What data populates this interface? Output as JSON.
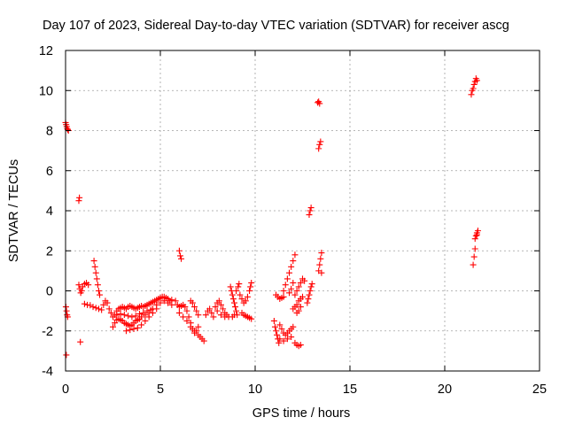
{
  "chart_data": {
    "type": "scatter",
    "title": "Day 107 of 2023, Sidereal Day-to-day VTEC variation (SDTVAR) for receiver ascg",
    "xlabel": "GPS time / hours",
    "ylabel": "SDTVAR / TECUs",
    "xlim": [
      0,
      25
    ],
    "ylim": [
      -4,
      12
    ],
    "xticks": [
      0,
      5,
      10,
      15,
      20,
      25
    ],
    "yticks": [
      -4,
      -2,
      0,
      2,
      4,
      6,
      8,
      10,
      12
    ],
    "grid": true,
    "marker": "+",
    "series_color": "#ff0000",
    "points": [
      [
        0.0,
        8.4
      ],
      [
        0.03,
        8.3
      ],
      [
        0.06,
        8.2
      ],
      [
        0.09,
        8.1
      ],
      [
        0.12,
        8.05
      ],
      [
        0.15,
        8.0
      ],
      [
        0.02,
        -0.8
      ],
      [
        0.05,
        -1.0
      ],
      [
        0.08,
        -1.2
      ],
      [
        0.11,
        -1.3
      ],
      [
        0.04,
        -3.2
      ],
      [
        0.7,
        4.5
      ],
      [
        0.73,
        4.65
      ],
      [
        0.78,
        -2.55
      ],
      [
        0.7,
        0.3
      ],
      [
        0.75,
        0.1
      ],
      [
        0.8,
        -0.1
      ],
      [
        0.85,
        0.0
      ],
      [
        0.9,
        0.2
      ],
      [
        1.0,
        0.35
      ],
      [
        1.1,
        0.4
      ],
      [
        1.2,
        0.3
      ],
      [
        1.0,
        -0.65
      ],
      [
        1.15,
        -0.7
      ],
      [
        1.3,
        -0.72
      ],
      [
        1.45,
        -0.8
      ],
      [
        1.6,
        -0.85
      ],
      [
        1.75,
        -0.9
      ],
      [
        1.9,
        -0.95
      ],
      [
        1.5,
        1.5
      ],
      [
        1.55,
        1.2
      ],
      [
        1.6,
        0.9
      ],
      [
        1.65,
        0.6
      ],
      [
        1.7,
        0.3
      ],
      [
        1.75,
        0.0
      ],
      [
        1.8,
        -0.2
      ],
      [
        2.0,
        -0.7
      ],
      [
        2.1,
        -0.5
      ],
      [
        2.2,
        -0.6
      ],
      [
        2.3,
        -0.9
      ],
      [
        2.4,
        -1.1
      ],
      [
        2.5,
        -1.3
      ],
      [
        2.6,
        -1.2
      ],
      [
        2.7,
        -1.0
      ],
      [
        2.8,
        -0.9
      ],
      [
        2.9,
        -0.85
      ],
      [
        3.0,
        -0.8
      ],
      [
        3.1,
        -0.85
      ],
      [
        3.2,
        -0.9
      ],
      [
        3.3,
        -0.8
      ],
      [
        3.4,
        -0.75
      ],
      [
        3.5,
        -0.8
      ],
      [
        3.6,
        -0.85
      ],
      [
        3.7,
        -0.9
      ],
      [
        3.8,
        -0.85
      ],
      [
        3.9,
        -0.8
      ],
      [
        4.0,
        -0.75
      ],
      [
        2.5,
        -1.8
      ],
      [
        2.6,
        -1.6
      ],
      [
        2.7,
        -1.45
      ],
      [
        2.8,
        -1.4
      ],
      [
        2.9,
        -1.45
      ],
      [
        3.0,
        -1.5
      ],
      [
        3.1,
        -1.6
      ],
      [
        3.2,
        -1.65
      ],
      [
        3.3,
        -1.7
      ],
      [
        3.4,
        -1.75
      ],
      [
        3.5,
        -1.7
      ],
      [
        3.6,
        -1.6
      ],
      [
        3.7,
        -1.5
      ],
      [
        3.8,
        -1.45
      ],
      [
        3.9,
        -1.4
      ],
      [
        4.0,
        -1.3
      ],
      [
        2.7,
        -1.2
      ],
      [
        2.9,
        -1.15
      ],
      [
        3.1,
        -1.2
      ],
      [
        3.3,
        -1.25
      ],
      [
        3.5,
        -1.3
      ],
      [
        3.7,
        -1.25
      ],
      [
        3.9,
        -1.15
      ],
      [
        4.1,
        -1.1
      ],
      [
        4.3,
        -1.0
      ],
      [
        4.5,
        -0.95
      ],
      [
        3.2,
        -2.0
      ],
      [
        3.4,
        -1.95
      ],
      [
        3.6,
        -1.9
      ],
      [
        3.8,
        -1.85
      ],
      [
        4.0,
        -1.7
      ],
      [
        4.2,
        -1.5
      ],
      [
        4.4,
        -1.3
      ],
      [
        4.6,
        -1.1
      ],
      [
        4.8,
        -0.9
      ],
      [
        4.1,
        -0.8
      ],
      [
        4.2,
        -0.75
      ],
      [
        4.3,
        -0.7
      ],
      [
        4.4,
        -0.65
      ],
      [
        4.5,
        -0.6
      ],
      [
        4.6,
        -0.55
      ],
      [
        4.7,
        -0.5
      ],
      [
        4.8,
        -0.45
      ],
      [
        4.9,
        -0.4
      ],
      [
        5.0,
        -0.35
      ],
      [
        5.1,
        -0.3
      ],
      [
        5.2,
        -0.3
      ],
      [
        5.3,
        -0.35
      ],
      [
        5.4,
        -0.4
      ],
      [
        5.5,
        -0.5
      ],
      [
        5.6,
        -0.45
      ],
      [
        4.2,
        -1.2
      ],
      [
        4.4,
        -1.1
      ],
      [
        4.6,
        -0.9
      ],
      [
        4.8,
        -0.7
      ],
      [
        5.0,
        -0.6
      ],
      [
        5.2,
        -0.5
      ],
      [
        5.4,
        -0.6
      ],
      [
        5.6,
        -0.7
      ],
      [
        6.0,
        2.0
      ],
      [
        6.05,
        1.75
      ],
      [
        6.1,
        1.6
      ],
      [
        5.8,
        -0.5
      ],
      [
        5.9,
        -0.7
      ],
      [
        6.0,
        -0.8
      ],
      [
        6.1,
        -0.75
      ],
      [
        6.2,
        -0.7
      ],
      [
        6.3,
        -0.8
      ],
      [
        6.4,
        -1.0
      ],
      [
        6.5,
        -1.3
      ],
      [
        6.6,
        -1.6
      ],
      [
        6.7,
        -1.9
      ],
      [
        6.8,
        -2.1
      ],
      [
        6.9,
        -2.0
      ],
      [
        7.0,
        -1.8
      ],
      [
        6.0,
        -1.1
      ],
      [
        6.2,
        -1.3
      ],
      [
        6.4,
        -1.5
      ],
      [
        6.6,
        -1.8
      ],
      [
        6.8,
        -2.0
      ],
      [
        7.0,
        -2.2
      ],
      [
        7.1,
        -2.3
      ],
      [
        7.2,
        -2.4
      ],
      [
        7.3,
        -2.5
      ],
      [
        6.6,
        -0.5
      ],
      [
        6.7,
        -0.6
      ],
      [
        6.8,
        -0.8
      ],
      [
        6.9,
        -1.0
      ],
      [
        7.0,
        -1.2
      ],
      [
        7.4,
        -1.2
      ],
      [
        7.5,
        -1.0
      ],
      [
        7.6,
        -0.9
      ],
      [
        7.7,
        -1.1
      ],
      [
        7.8,
        -1.3
      ],
      [
        7.9,
        -0.8
      ],
      [
        8.0,
        -0.6
      ],
      [
        8.1,
        -0.5
      ],
      [
        8.2,
        -0.7
      ],
      [
        8.3,
        -0.9
      ],
      [
        8.4,
        -1.1
      ],
      [
        8.5,
        -1.2
      ],
      [
        8.6,
        -1.3
      ],
      [
        8.0,
        -1.0
      ],
      [
        8.2,
        -1.2
      ],
      [
        8.4,
        -1.3
      ],
      [
        8.7,
        0.2
      ],
      [
        8.75,
        0.0
      ],
      [
        8.8,
        -0.2
      ],
      [
        8.85,
        -0.4
      ],
      [
        8.9,
        -0.6
      ],
      [
        8.95,
        -0.8
      ],
      [
        9.0,
        -1.0
      ],
      [
        9.05,
        -1.2
      ],
      [
        8.8,
        -1.3
      ],
      [
        8.9,
        -1.2
      ],
      [
        9.2,
        -0.2
      ],
      [
        9.3,
        -0.4
      ],
      [
        9.4,
        -0.6
      ],
      [
        9.5,
        -0.5
      ],
      [
        9.6,
        -0.3
      ],
      [
        9.7,
        0.0
      ],
      [
        9.75,
        0.2
      ],
      [
        9.8,
        0.4
      ],
      [
        9.3,
        -1.1
      ],
      [
        9.4,
        -1.2
      ],
      [
        9.5,
        -1.25
      ],
      [
        9.6,
        -1.3
      ],
      [
        9.7,
        -1.35
      ],
      [
        9.8,
        -1.4
      ],
      [
        9.0,
        0.0
      ],
      [
        9.1,
        0.2
      ],
      [
        9.15,
        0.35
      ],
      [
        11.0,
        -1.5
      ],
      [
        11.05,
        -1.8
      ],
      [
        11.1,
        -2.0
      ],
      [
        11.15,
        -2.2
      ],
      [
        11.2,
        -2.4
      ],
      [
        11.25,
        -2.6
      ],
      [
        11.1,
        -0.2
      ],
      [
        11.2,
        -0.3
      ],
      [
        11.3,
        -0.4
      ],
      [
        11.4,
        -0.35
      ],
      [
        11.5,
        -0.3
      ],
      [
        11.3,
        -1.7
      ],
      [
        11.4,
        -1.9
      ],
      [
        11.5,
        -2.1
      ],
      [
        11.6,
        -2.2
      ],
      [
        11.7,
        -2.1
      ],
      [
        11.8,
        -2.0
      ],
      [
        11.9,
        -1.9
      ],
      [
        12.0,
        -1.8
      ],
      [
        11.3,
        -2.4
      ],
      [
        11.5,
        -2.5
      ],
      [
        11.7,
        -2.4
      ],
      [
        11.9,
        -2.3
      ],
      [
        11.5,
        0.0
      ],
      [
        11.6,
        0.3
      ],
      [
        11.7,
        0.6
      ],
      [
        11.8,
        0.9
      ],
      [
        11.9,
        1.2
      ],
      [
        12.0,
        1.5
      ],
      [
        12.1,
        1.8
      ],
      [
        11.8,
        -0.1
      ],
      [
        11.9,
        0.1
      ],
      [
        12.0,
        0.4
      ],
      [
        12.1,
        -2.6
      ],
      [
        12.2,
        -2.7
      ],
      [
        12.3,
        -2.75
      ],
      [
        12.4,
        -2.7
      ],
      [
        12.0,
        -0.9
      ],
      [
        12.1,
        -0.8
      ],
      [
        12.2,
        -0.7
      ],
      [
        12.3,
        -0.5
      ],
      [
        12.4,
        -0.4
      ],
      [
        12.5,
        -0.3
      ],
      [
        12.1,
        -0.2
      ],
      [
        12.2,
        0.0
      ],
      [
        12.3,
        0.2
      ],
      [
        12.4,
        0.4
      ],
      [
        12.5,
        0.6
      ],
      [
        12.6,
        0.5
      ],
      [
        12.2,
        -1.1
      ],
      [
        12.3,
        -1.0
      ],
      [
        12.4,
        -0.8
      ],
      [
        12.75,
        -0.6
      ],
      [
        12.8,
        -0.4
      ],
      [
        12.85,
        -0.2
      ],
      [
        12.9,
        0.0
      ],
      [
        12.95,
        0.2
      ],
      [
        13.0,
        0.35
      ],
      [
        12.85,
        3.8
      ],
      [
        12.9,
        4.0
      ],
      [
        12.95,
        4.15
      ],
      [
        13.3,
        9.4
      ],
      [
        13.35,
        9.45
      ],
      [
        13.4,
        9.35
      ],
      [
        13.35,
        7.1
      ],
      [
        13.4,
        7.3
      ],
      [
        13.45,
        7.45
      ],
      [
        13.35,
        1.0
      ],
      [
        13.4,
        1.3
      ],
      [
        13.45,
        1.6
      ],
      [
        13.5,
        1.9
      ],
      [
        13.5,
        0.9
      ],
      [
        21.4,
        9.8
      ],
      [
        21.45,
        10.0
      ],
      [
        21.5,
        10.1
      ],
      [
        21.55,
        10.3
      ],
      [
        21.6,
        10.45
      ],
      [
        21.65,
        10.6
      ],
      [
        21.7,
        10.5
      ],
      [
        21.5,
        1.3
      ],
      [
        21.55,
        1.7
      ],
      [
        21.6,
        2.1
      ],
      [
        21.6,
        2.6
      ],
      [
        21.65,
        2.75
      ],
      [
        21.7,
        2.9
      ],
      [
        21.75,
        3.0
      ],
      [
        21.7,
        2.8
      ]
    ]
  }
}
